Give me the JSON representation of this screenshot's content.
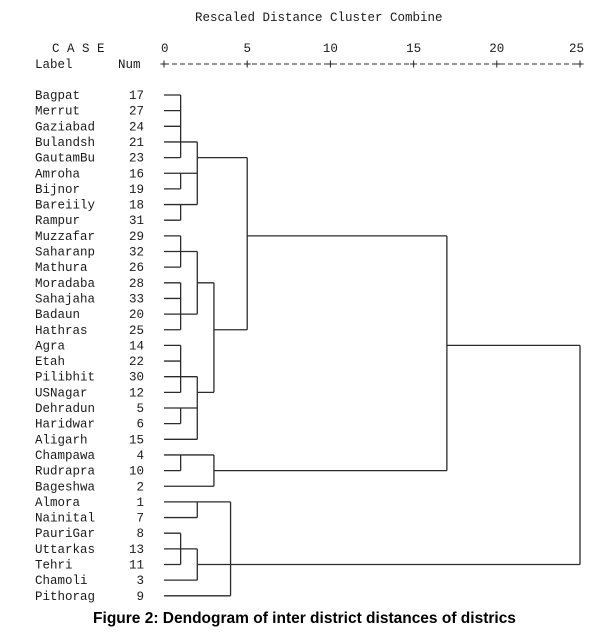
{
  "chart_data": {
    "type": "dendrogram",
    "title": "Rescaled Distance Cluster Combine",
    "case_header": "C A S E",
    "label_header": "Label",
    "num_header": "Num",
    "axis_ruler": "+---------+---------+---------+---------+---------+",
    "xlim": [
      0,
      25
    ],
    "ticks": [
      0,
      5,
      10,
      15,
      20,
      25
    ],
    "tick_labels": [
      "0",
      "5",
      "10",
      "15",
      "20",
      "25"
    ],
    "leaves": [
      {
        "label": "Bagpat",
        "num": "17"
      },
      {
        "label": "Merrut",
        "num": "27"
      },
      {
        "label": "Gaziabad",
        "num": "24"
      },
      {
        "label": "Bulandsh",
        "num": "21"
      },
      {
        "label": "GautamBu",
        "num": "23"
      },
      {
        "label": "Amroha",
        "num": "16"
      },
      {
        "label": "Bijnor",
        "num": "19"
      },
      {
        "label": "Bareiily",
        "num": "18"
      },
      {
        "label": "Rampur",
        "num": "31"
      },
      {
        "label": "Muzzafar",
        "num": "29"
      },
      {
        "label": "Saharanp",
        "num": "32"
      },
      {
        "label": "Mathura",
        "num": "26"
      },
      {
        "label": "Moradaba",
        "num": "28"
      },
      {
        "label": "Sahajaha",
        "num": "33"
      },
      {
        "label": "Badaun",
        "num": "20"
      },
      {
        "label": "Hathras",
        "num": "25"
      },
      {
        "label": "Agra",
        "num": "14"
      },
      {
        "label": "Etah",
        "num": "22"
      },
      {
        "label": "Pilibhit",
        "num": "30"
      },
      {
        "label": "USNagar",
        "num": "12"
      },
      {
        "label": "Dehradun",
        "num": "5"
      },
      {
        "label": "Haridwar",
        "num": "6"
      },
      {
        "label": "Aligarh",
        "num": "15"
      },
      {
        "label": "Champawa",
        "num": "4"
      },
      {
        "label": "Rudrapra",
        "num": "10"
      },
      {
        "label": "Bageshwa",
        "num": "2"
      },
      {
        "label": "Almora",
        "num": "1"
      },
      {
        "label": "Nainital",
        "num": "7"
      },
      {
        "label": "PauriGar",
        "num": "8"
      },
      {
        "label": "Uttarkas",
        "num": "13"
      },
      {
        "label": "Tehri",
        "num": "11"
      },
      {
        "label": "Chamoli",
        "num": "3"
      },
      {
        "label": "Pithorag",
        "num": "9"
      }
    ],
    "clusters": [
      {
        "id": "A",
        "distance": 1,
        "children": [
          0,
          1,
          2,
          3,
          4
        ],
        "join_row": 3
      },
      {
        "id": "B",
        "distance": 1,
        "children": [
          5,
          6
        ],
        "join_row": 5
      },
      {
        "id": "C",
        "distance": 1,
        "children": [
          7,
          8
        ],
        "join_row": 7
      },
      {
        "id": "D",
        "distance": 2,
        "children": [
          "A",
          "B",
          "C"
        ],
        "join_row": 4
      },
      {
        "id": "E",
        "distance": 1,
        "children": [
          9,
          10,
          11
        ],
        "join_row": 10
      },
      {
        "id": "F",
        "distance": 1,
        "children": [
          12,
          13,
          14,
          15
        ],
        "join_row": 14
      },
      {
        "id": "G",
        "distance": 2,
        "children": [
          "E",
          "F"
        ],
        "join_row": 12
      },
      {
        "id": "H",
        "distance": 1,
        "children": [
          16,
          17,
          18,
          19
        ],
        "join_row": 18
      },
      {
        "id": "I",
        "distance": 1,
        "children": [
          20,
          21
        ],
        "join_row": 20
      },
      {
        "id": "J",
        "distance": 2,
        "children": [
          "H",
          "I",
          22
        ],
        "join_row": 19
      },
      {
        "id": "K",
        "distance": 3,
        "children": [
          "G",
          "J"
        ],
        "join_row": 15
      },
      {
        "id": "L",
        "distance": 5,
        "children": [
          "D",
          "K"
        ],
        "join_row": 9
      },
      {
        "id": "M",
        "distance": 1,
        "children": [
          23,
          24
        ],
        "join_row": 23
      },
      {
        "id": "N",
        "distance": 3,
        "children": [
          "M",
          25
        ],
        "join_row": 24
      },
      {
        "id": "O",
        "distance": 17,
        "children": [
          "L",
          "N"
        ],
        "join_row": 16
      },
      {
        "id": "P",
        "distance": 2,
        "children": [
          26,
          27
        ],
        "join_row": 26
      },
      {
        "id": "Q",
        "distance": 1,
        "children": [
          28,
          29,
          30
        ],
        "join_row": 29
      },
      {
        "id": "R",
        "distance": 2,
        "children": [
          "Q",
          31
        ],
        "join_row": 30
      },
      {
        "id": "S",
        "distance": 4,
        "children": [
          "P",
          "R",
          32
        ],
        "join_row": 30
      },
      {
        "id": "T",
        "distance": 25,
        "children": [
          "O",
          "S"
        ],
        "join_row": 23
      }
    ],
    "line_color": "#2b2b2b"
  },
  "caption": "Figure 2: Dendogram of inter district distances of districs"
}
